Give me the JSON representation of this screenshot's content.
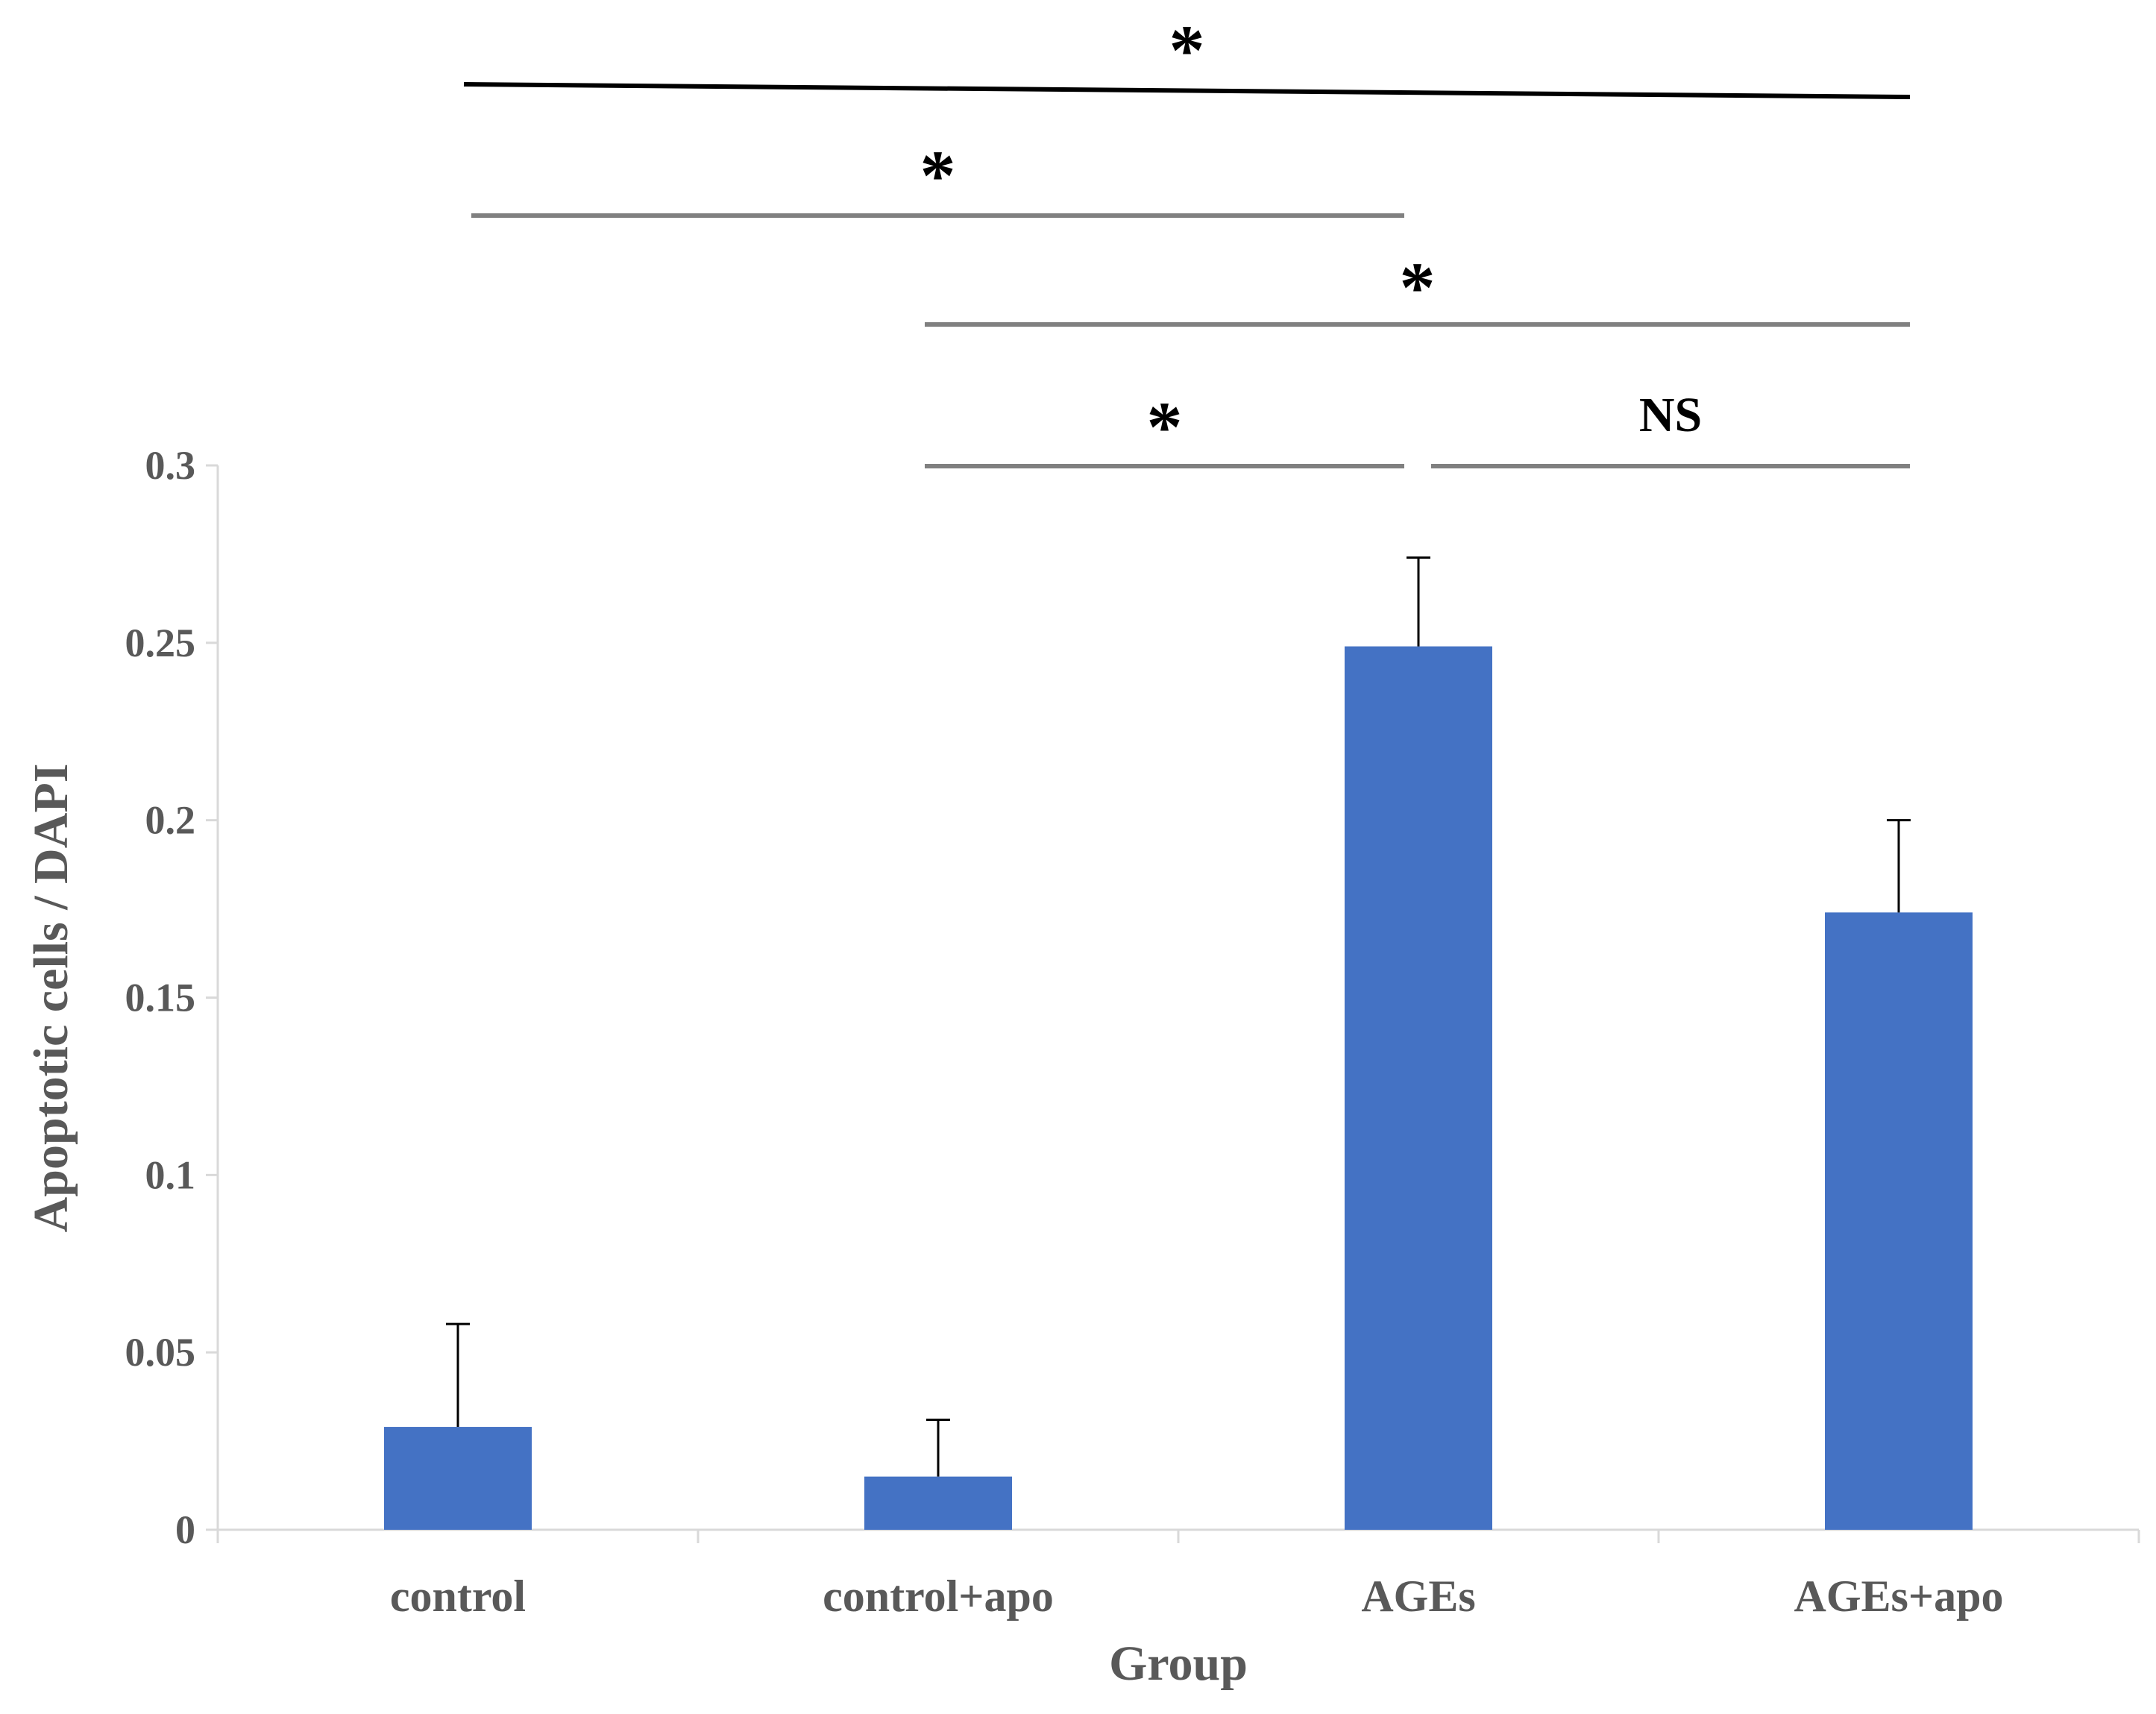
{
  "chart_data": {
    "type": "bar",
    "categories": [
      "control",
      "control+apo",
      "AGEs",
      "AGEs+apo"
    ],
    "values": [
      0.029,
      0.015,
      0.249,
      0.174
    ],
    "error_upper": [
      0.058,
      0.031,
      0.274,
      0.2
    ],
    "xlabel": "Group",
    "ylabel": "Apoptotic cells / DAPI",
    "ylim": [
      0,
      0.3
    ],
    "yticks": [
      "0",
      "0.05",
      "0.1",
      "0.15",
      "0.2",
      "0.25",
      "0.3"
    ],
    "grid": false,
    "legend": "none",
    "bar_color": "#4472c4",
    "significance": [
      {
        "from": 0,
        "to": 3,
        "label": "*"
      },
      {
        "from": 0,
        "to": 2,
        "label": "*"
      },
      {
        "from": 1,
        "to": 3,
        "label": "*"
      },
      {
        "from": 1,
        "to": 2,
        "label": "*"
      },
      {
        "from": 2,
        "to": 3,
        "label": "NS"
      }
    ]
  }
}
